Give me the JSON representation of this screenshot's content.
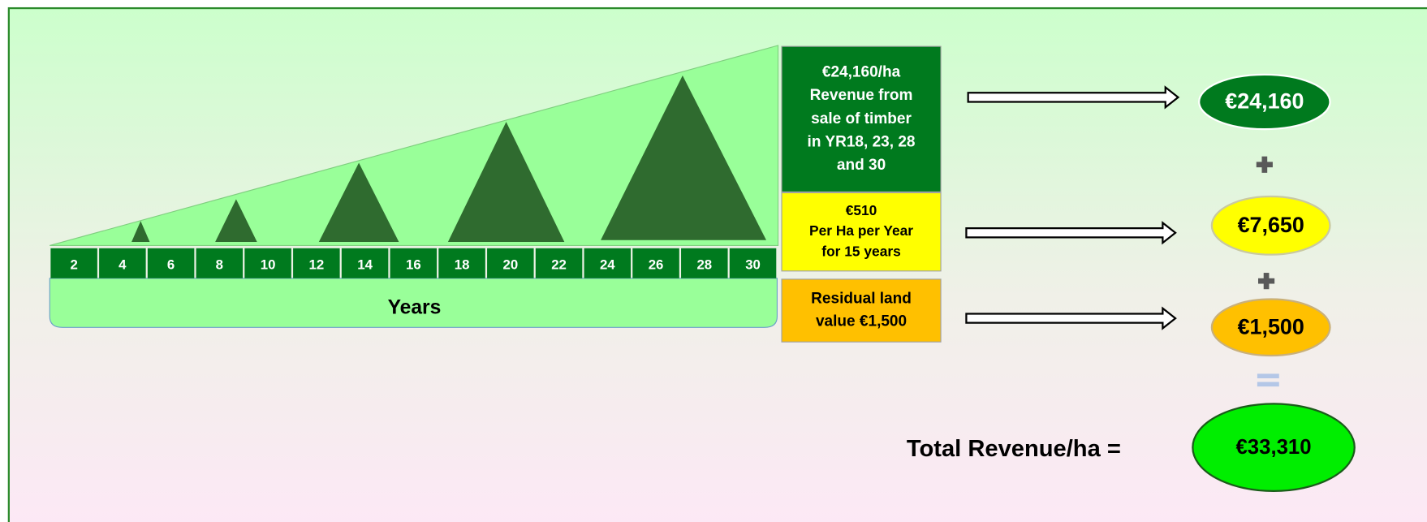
{
  "timeline": {
    "ticks": [
      2,
      4,
      6,
      8,
      10,
      12,
      14,
      16,
      18,
      20,
      22,
      24,
      26,
      28,
      30
    ],
    "label": "Years"
  },
  "boxes": [
    {
      "lines": [
        "€24,160/ha",
        "Revenue from",
        "sale of timber",
        "in YR18, 23, 28",
        "and 30"
      ]
    },
    {
      "lines": [
        "€510",
        "Per Ha per Year",
        "for 15 years"
      ]
    },
    {
      "lines": [
        "Residual land",
        "value €1,500"
      ]
    }
  ],
  "results": [
    "€24,160",
    "€7,650",
    "€1,500"
  ],
  "total": {
    "label": "Total Revenue/ha =",
    "value": "€33,310"
  }
}
